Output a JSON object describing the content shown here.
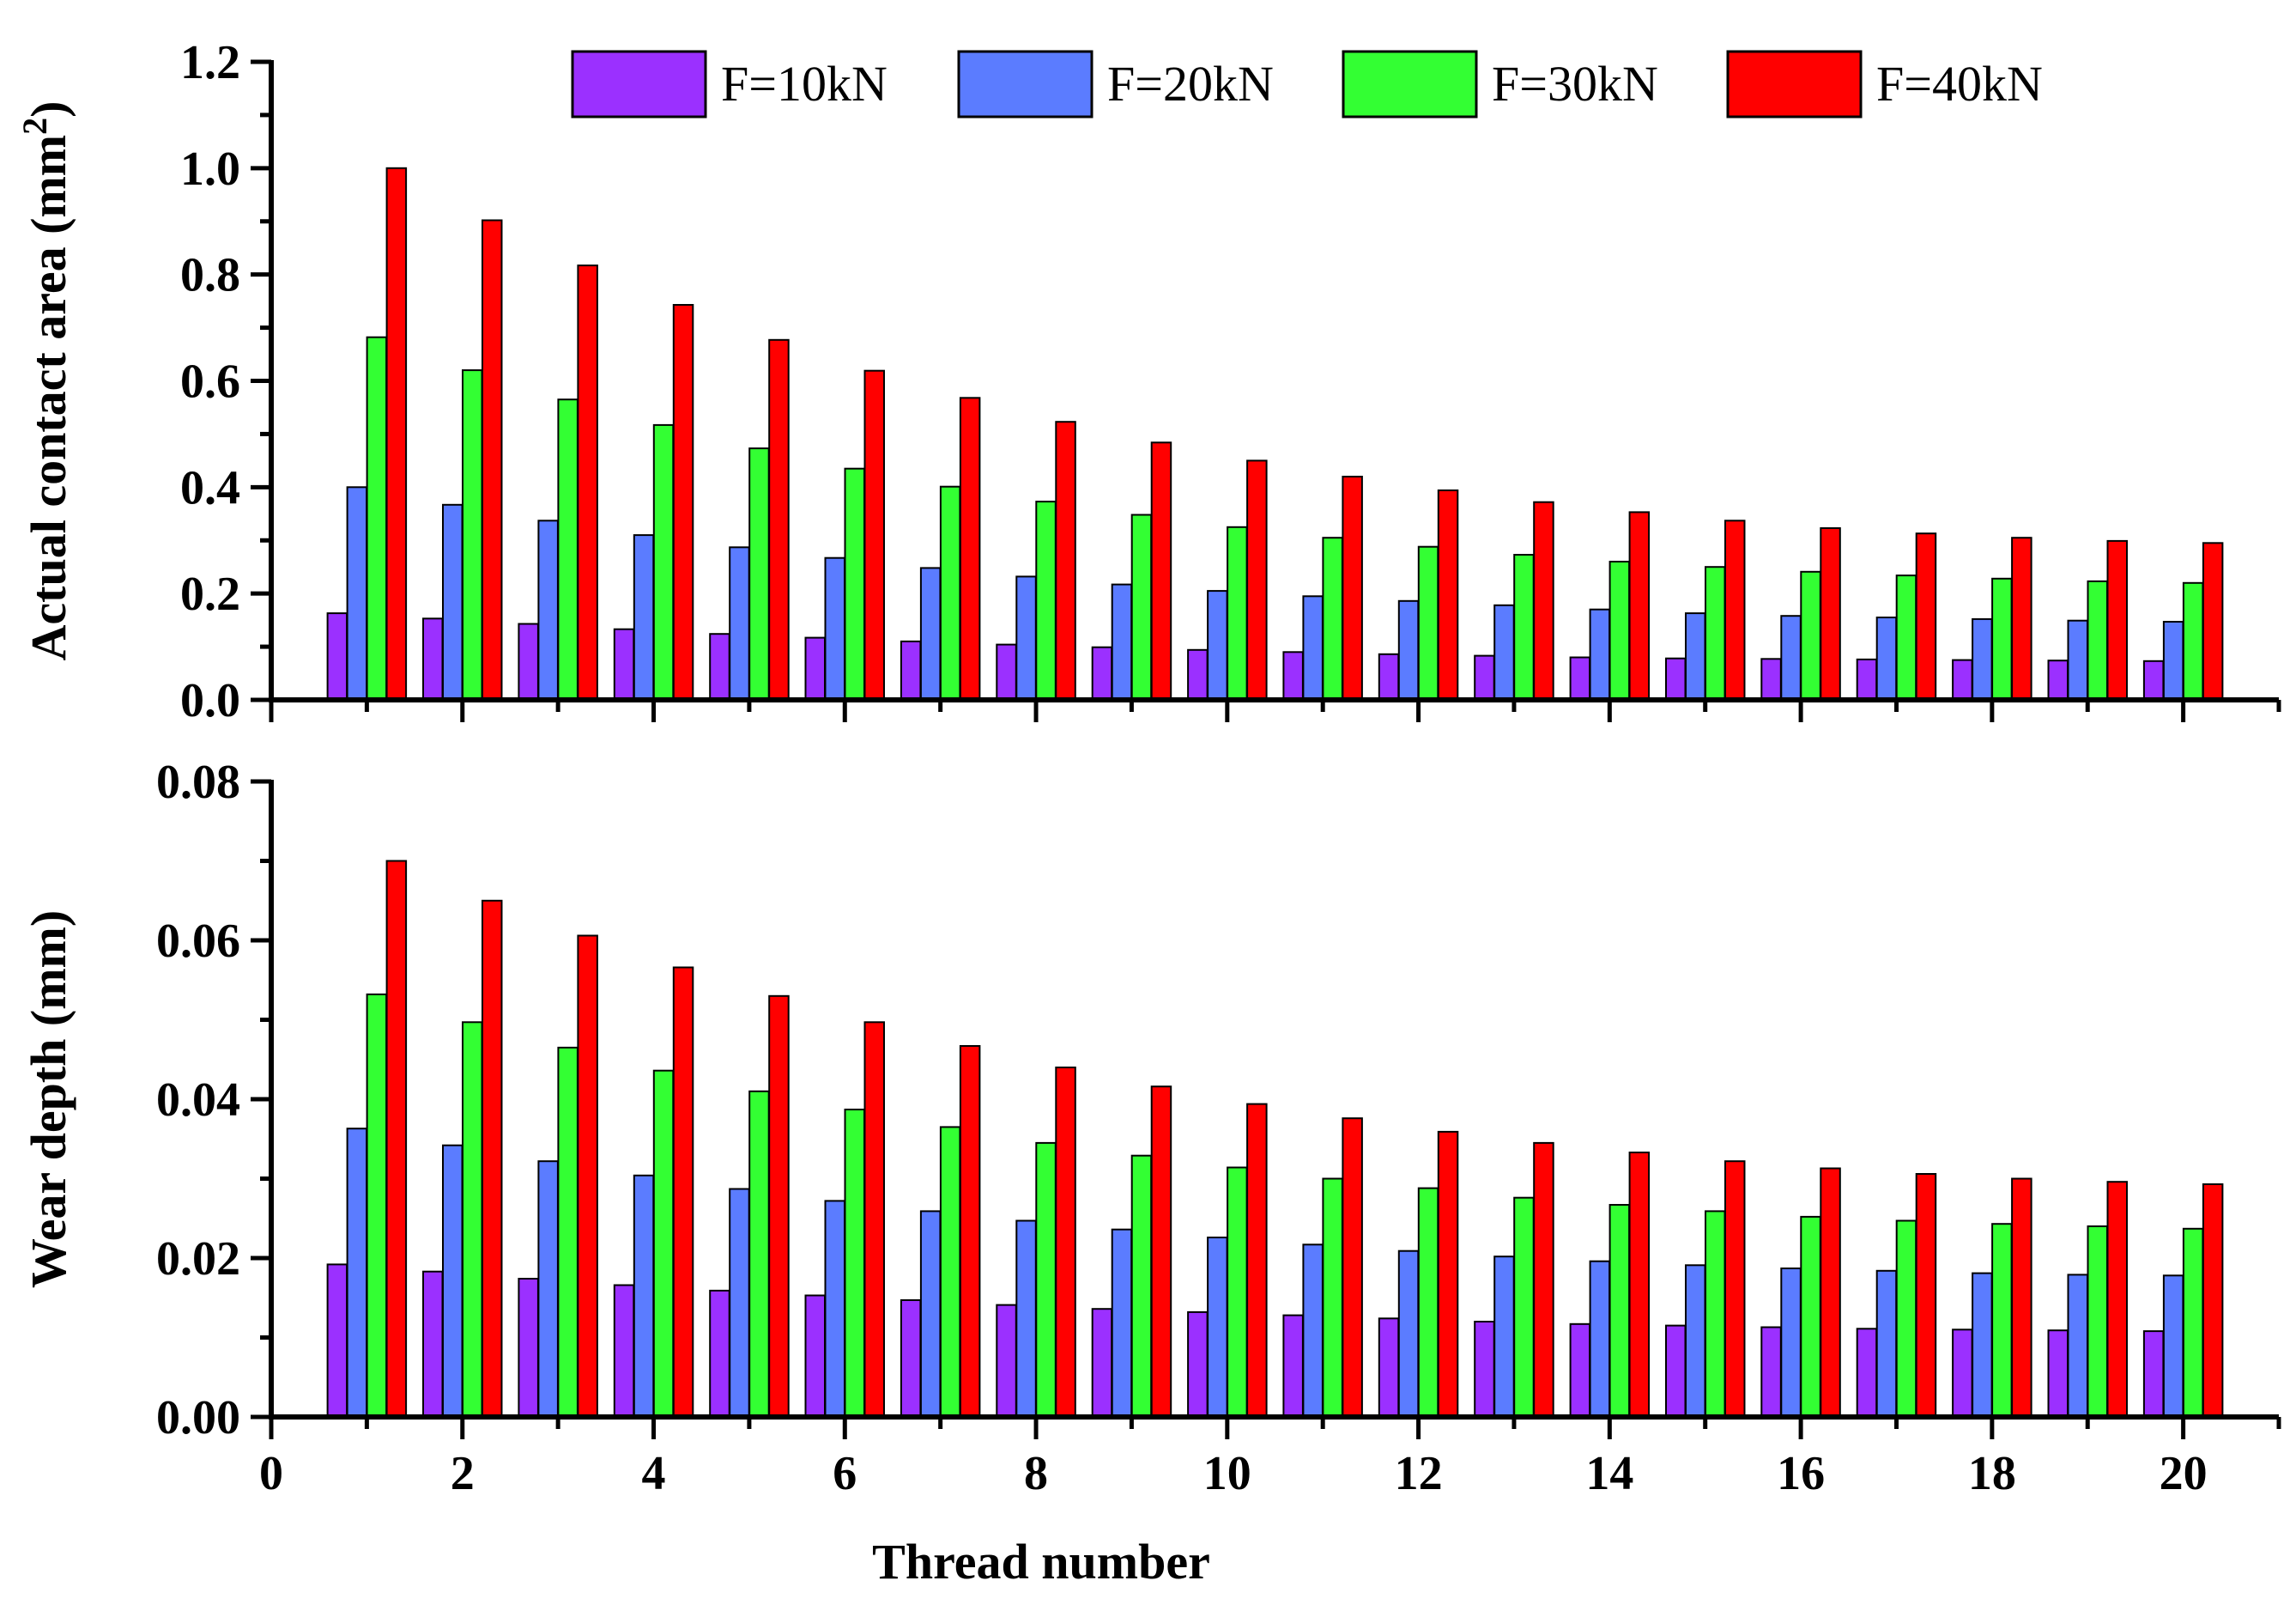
{
  "chart_data": [
    {
      "type": "bar",
      "id": "contact",
      "ylabel": "Actual contact area (mm",
      "ylabel_sup": "2",
      "ylabel_tail": ")",
      "xlabel": "",
      "xlim": [
        0,
        21
      ],
      "ylim": [
        0,
        1.2
      ],
      "yticks": [
        "0.0",
        "0.2",
        "0.4",
        "0.6",
        "0.8",
        "1.0",
        "1.2"
      ],
      "ytick_values": [
        0,
        0.2,
        0.4,
        0.6,
        0.8,
        1.0,
        1.2
      ],
      "categories": [
        1,
        2,
        3,
        4,
        5,
        6,
        7,
        8,
        9,
        10,
        11,
        12,
        13,
        14,
        15,
        16,
        17,
        18,
        19,
        20
      ],
      "legend": true,
      "legend_position": "top-right",
      "series": [
        {
          "name": "F=10kN",
          "color": "#9b30ff",
          "values": [
            0.163,
            0.153,
            0.143,
            0.133,
            0.124,
            0.117,
            0.11,
            0.104,
            0.099,
            0.094,
            0.09,
            0.086,
            0.083,
            0.08,
            0.078,
            0.077,
            0.076,
            0.075,
            0.074,
            0.073
          ]
        },
        {
          "name": "F=20kN",
          "color": "#5b7cff",
          "values": [
            0.4,
            0.367,
            0.337,
            0.31,
            0.287,
            0.267,
            0.248,
            0.232,
            0.217,
            0.205,
            0.195,
            0.186,
            0.178,
            0.17,
            0.163,
            0.158,
            0.155,
            0.152,
            0.149,
            0.147
          ]
        },
        {
          "name": "F=30kN",
          "color": "#33ff33",
          "values": [
            0.682,
            0.62,
            0.565,
            0.517,
            0.473,
            0.435,
            0.401,
            0.373,
            0.348,
            0.325,
            0.305,
            0.288,
            0.273,
            0.26,
            0.25,
            0.241,
            0.234,
            0.228,
            0.223,
            0.22
          ]
        },
        {
          "name": "F=40kN",
          "color": "#ff0000",
          "values": [
            1.0,
            0.902,
            0.817,
            0.743,
            0.677,
            0.619,
            0.568,
            0.523,
            0.484,
            0.45,
            0.42,
            0.394,
            0.372,
            0.353,
            0.337,
            0.323,
            0.313,
            0.305,
            0.299,
            0.295
          ]
        }
      ]
    },
    {
      "type": "bar",
      "id": "wear",
      "ylabel": "Wear depth (mm)",
      "xlabel": "Thread number",
      "xlim": [
        0,
        21
      ],
      "ylim": [
        0,
        0.08
      ],
      "yticks": [
        "0.00",
        "0.02",
        "0.04",
        "0.06",
        "0.08"
      ],
      "ytick_values": [
        0,
        0.02,
        0.04,
        0.06,
        0.08
      ],
      "xticks": [
        "0",
        "2",
        "4",
        "6",
        "8",
        "10",
        "12",
        "14",
        "16",
        "18",
        "20"
      ],
      "xtick_values": [
        0,
        2,
        4,
        6,
        8,
        10,
        12,
        14,
        16,
        18,
        20
      ],
      "categories": [
        1,
        2,
        3,
        4,
        5,
        6,
        7,
        8,
        9,
        10,
        11,
        12,
        13,
        14,
        15,
        16,
        17,
        18,
        19,
        20
      ],
      "legend": false,
      "series": [
        {
          "name": "F=10kN",
          "color": "#9b30ff",
          "values": [
            0.0192,
            0.0183,
            0.0174,
            0.0166,
            0.0159,
            0.0153,
            0.0147,
            0.0141,
            0.0136,
            0.0132,
            0.0128,
            0.0124,
            0.012,
            0.0117,
            0.0115,
            0.0113,
            0.0111,
            0.011,
            0.0109,
            0.0108
          ]
        },
        {
          "name": "F=20kN",
          "color": "#5b7cff",
          "values": [
            0.0363,
            0.0342,
            0.0322,
            0.0304,
            0.0287,
            0.0272,
            0.0259,
            0.0247,
            0.0236,
            0.0226,
            0.0217,
            0.0209,
            0.0202,
            0.0196,
            0.0191,
            0.0187,
            0.0184,
            0.0181,
            0.0179,
            0.0178
          ]
        },
        {
          "name": "F=30kN",
          "color": "#33ff33",
          "values": [
            0.0532,
            0.0497,
            0.0465,
            0.0436,
            0.041,
            0.0387,
            0.0365,
            0.0345,
            0.0329,
            0.0314,
            0.03,
            0.0288,
            0.0276,
            0.0267,
            0.0259,
            0.0252,
            0.0247,
            0.0243,
            0.024,
            0.0237
          ]
        },
        {
          "name": "F=40kN",
          "color": "#ff0000",
          "values": [
            0.07,
            0.065,
            0.0606,
            0.0566,
            0.053,
            0.0497,
            0.0467,
            0.044,
            0.0416,
            0.0394,
            0.0376,
            0.0359,
            0.0345,
            0.0333,
            0.0322,
            0.0313,
            0.0306,
            0.03,
            0.0296,
            0.0293
          ]
        }
      ]
    }
  ]
}
